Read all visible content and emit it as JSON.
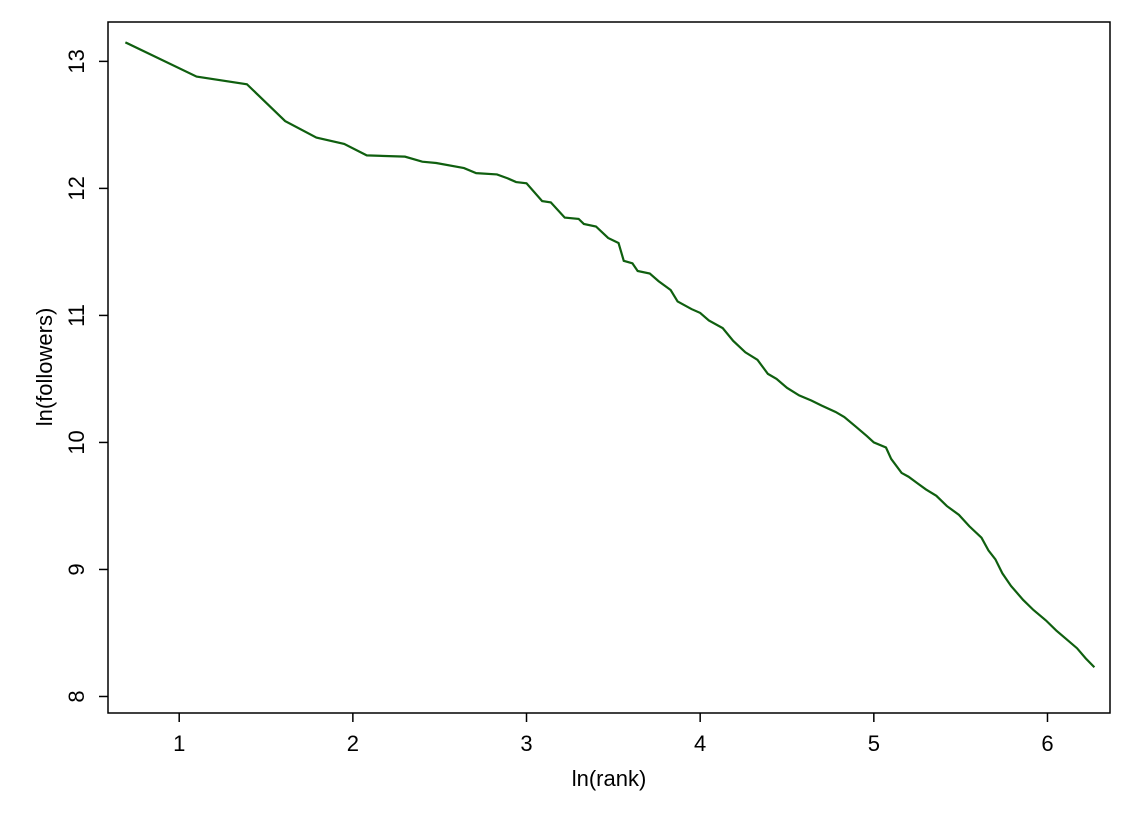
{
  "chart_data": {
    "type": "line",
    "x_label": "ln(rank)",
    "y_label": "ln(followers)",
    "xlim": [
      0.59,
      6.36
    ],
    "ylim": [
      7.87,
      13.31
    ],
    "xticks": [
      1,
      2,
      3,
      4,
      5,
      6
    ],
    "yticks": [
      8,
      9,
      10,
      11,
      12,
      13
    ],
    "color": "#0f5f0f",
    "x": [
      0.69,
      1.1,
      1.39,
      1.61,
      1.79,
      1.95,
      2.08,
      2.3,
      2.4,
      2.48,
      2.64,
      2.71,
      2.83,
      2.89,
      2.94,
      3.0,
      3.09,
      3.14,
      3.22,
      3.3,
      3.33,
      3.4,
      3.47,
      3.53,
      3.56,
      3.61,
      3.64,
      3.71,
      3.76,
      3.83,
      3.87,
      3.95,
      4.0,
      4.05,
      4.13,
      4.19,
      4.26,
      4.33,
      4.39,
      4.44,
      4.5,
      4.57,
      4.64,
      4.7,
      4.78,
      4.83,
      4.9,
      4.96,
      5.0,
      5.07,
      5.1,
      5.16,
      5.2,
      5.25,
      5.3,
      5.36,
      5.42,
      5.49,
      5.55,
      5.62,
      5.66,
      5.7,
      5.74,
      5.79,
      5.86,
      5.92,
      5.99,
      6.05,
      6.11,
      6.17,
      6.22,
      6.27
    ],
    "values": [
      13.15,
      12.88,
      12.82,
      12.53,
      12.4,
      12.35,
      12.26,
      12.25,
      12.21,
      12.2,
      12.16,
      12.12,
      12.11,
      12.08,
      12.05,
      12.04,
      11.9,
      11.89,
      11.77,
      11.76,
      11.72,
      11.7,
      11.61,
      11.57,
      11.43,
      11.41,
      11.35,
      11.33,
      11.27,
      11.2,
      11.11,
      11.05,
      11.02,
      10.96,
      10.9,
      10.8,
      10.71,
      10.65,
      10.54,
      10.5,
      10.43,
      10.37,
      10.33,
      10.29,
      10.24,
      10.2,
      10.12,
      10.05,
      10.0,
      9.96,
      9.87,
      9.76,
      9.73,
      9.68,
      9.63,
      9.58,
      9.5,
      9.43,
      9.34,
      9.25,
      9.15,
      9.08,
      8.97,
      8.87,
      8.76,
      8.68,
      8.6,
      8.52,
      8.45,
      8.38,
      8.3,
      8.23
    ]
  }
}
